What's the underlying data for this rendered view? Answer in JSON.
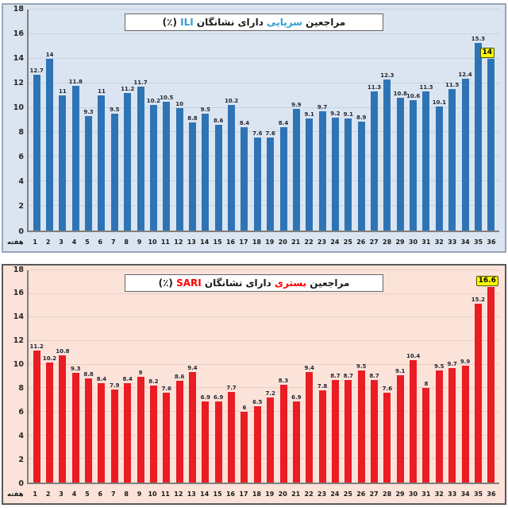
{
  "page": {
    "background": "#ffffff"
  },
  "chart_data": [
    {
      "type": "bar",
      "id": "ili-outpatient",
      "title": {
        "full": "مراجعین سرپایی دارای نشانگان ILI (٪)",
        "prefix": "مراجعین",
        "accent1": "سرپایی",
        "middle": "دارای نشانگان",
        "accent2": "ILI",
        "suffix": "(٪)"
      },
      "xlabel": "هفته",
      "ylabel": "",
      "ylim": [
        0,
        18
      ],
      "ytick_step": 2,
      "grid": true,
      "categories": [
        1,
        2,
        3,
        4,
        5,
        6,
        7,
        8,
        9,
        10,
        11,
        12,
        13,
        14,
        15,
        16,
        17,
        18,
        19,
        20,
        21,
        22,
        23,
        24,
        25,
        26,
        27,
        28,
        29,
        30,
        31,
        32,
        33,
        34,
        35,
        36
      ],
      "values": [
        12.7,
        14,
        11,
        11.8,
        9.3,
        11,
        9.5,
        11.2,
        11.7,
        10.2,
        10.5,
        10,
        8.8,
        9.5,
        8.6,
        10.2,
        8.4,
        7.6,
        7.6,
        8.4,
        9.9,
        9.1,
        9.7,
        9.2,
        9.1,
        8.9,
        11.3,
        12.3,
        10.8,
        10.6,
        11.3,
        10.1,
        11.5,
        12.4,
        15.3,
        14
      ],
      "highlight_index": 35,
      "highlight_value": "14",
      "colors": {
        "bar": "#2e74b5",
        "background": "#dbe5f1",
        "border": "#98a6b8",
        "grid": "#c4d2e3",
        "accent_text": "#2f9fd0",
        "highlight_box": "#ffff00"
      }
    },
    {
      "type": "bar",
      "id": "sari-hospitalized",
      "title": {
        "full": "مراجعین بستری دارای نشانگان SARI (٪)",
        "prefix": "مراجعین",
        "accent1": "بستری",
        "middle": "دارای نشانگان",
        "accent2": "SARI",
        "suffix": "(٪)"
      },
      "xlabel": "هفته",
      "ylabel": "",
      "ylim": [
        0,
        18
      ],
      "ytick_step": 2,
      "grid": true,
      "categories": [
        1,
        2,
        3,
        4,
        5,
        6,
        7,
        8,
        9,
        10,
        11,
        12,
        13,
        14,
        15,
        16,
        17,
        18,
        19,
        20,
        21,
        22,
        23,
        24,
        25,
        26,
        27,
        28,
        29,
        30,
        31,
        32,
        33,
        34,
        35,
        36
      ],
      "values": [
        11.2,
        10.2,
        10.8,
        9.3,
        8.8,
        8.4,
        7.9,
        8.4,
        9,
        8.2,
        7.6,
        8.6,
        9.4,
        6.9,
        6.9,
        7.7,
        6,
        6.5,
        7.2,
        8.3,
        6.9,
        9.4,
        7.8,
        8.7,
        8.7,
        9.5,
        8.7,
        7.6,
        9.1,
        10.4,
        8,
        9.5,
        9.7,
        9.9,
        15.2,
        16.6
      ],
      "highlight_index": 35,
      "highlight_value": "16.6",
      "colors": {
        "bar": "#ea1c24",
        "background": "#fbe3d9",
        "border": "#595959",
        "grid": "#e9cfc4",
        "accent_text": "#ff0000",
        "highlight_box": "#ffff00"
      }
    }
  ]
}
